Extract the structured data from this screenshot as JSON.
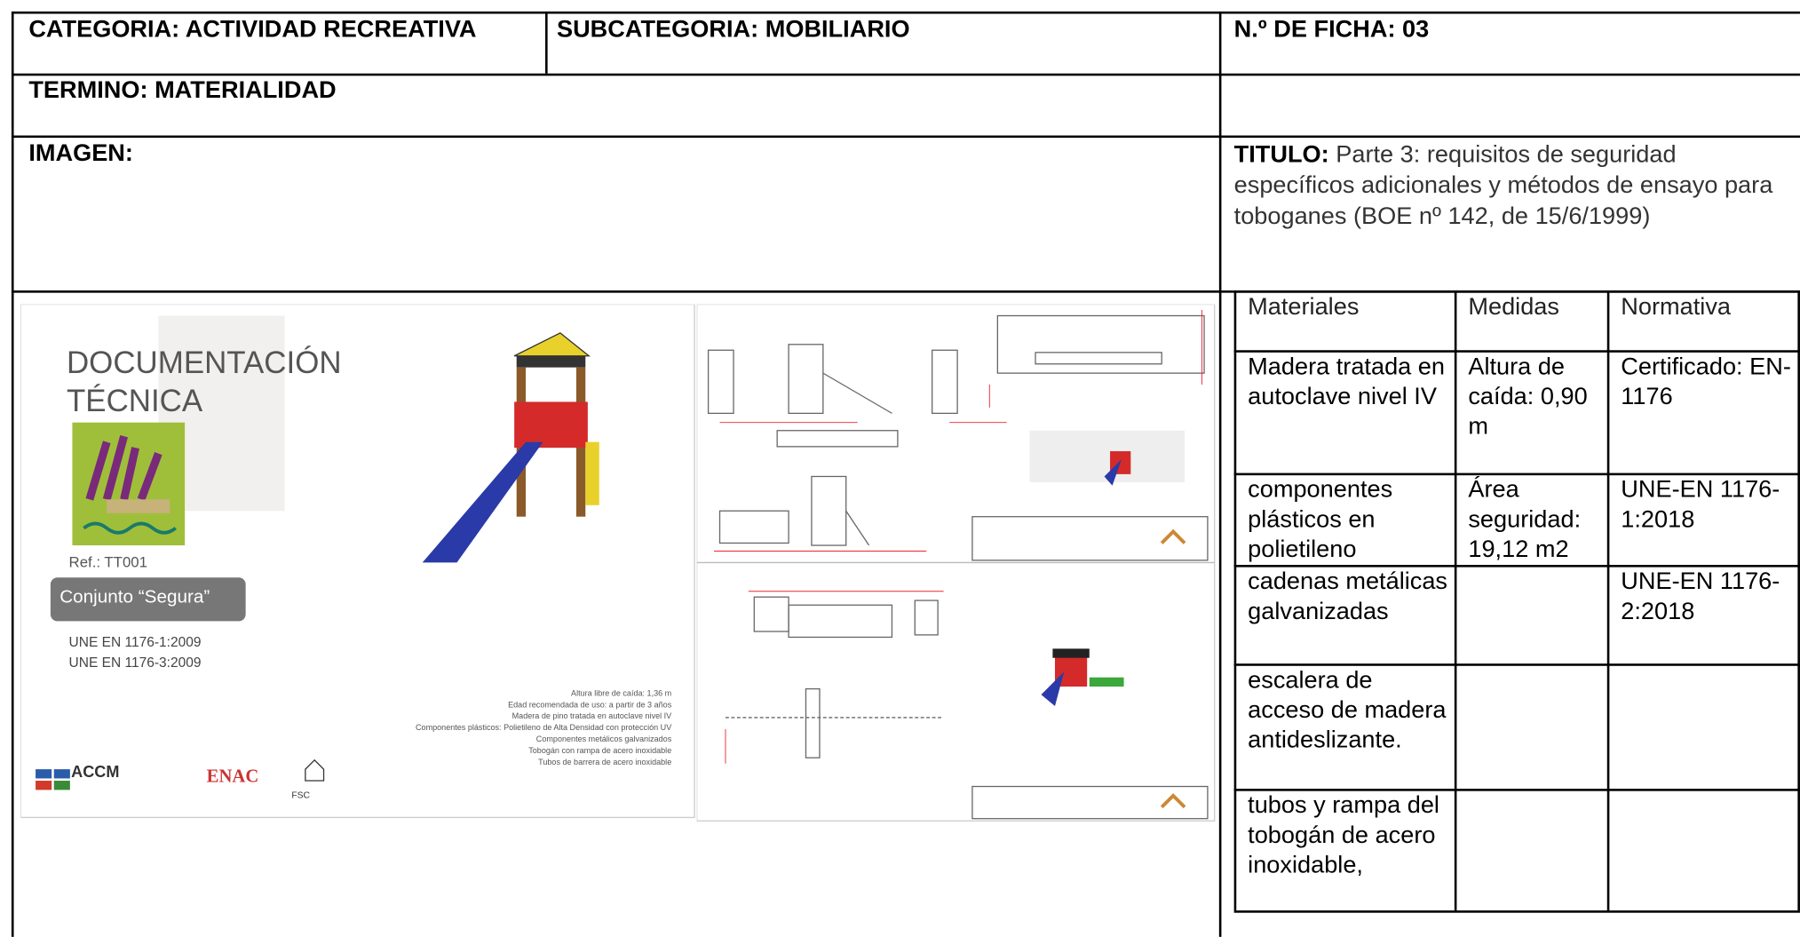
{
  "header": {
    "categoria": "CATEGORIA:  ACTIVIDAD RECREATIVA",
    "subcategoria": "SUBCATEGORIA:  MOBILIARIO",
    "ficha": "N.º DE FICHA: 03",
    "termino": "TERMINO: MATERIALIDAD",
    "imagen": "IMAGEN:",
    "titulo_label": "TITULO:",
    "titulo": "Parte 3: requisitos de seguridad específicos adicionales y métodos de ensayo para toboganes (BOE nº 142, de 15/6/1999)"
  },
  "image": {
    "heading": "DOCUMENTACIÓN TÉCNICA",
    "ref": "Ref.: TT001",
    "name": "Conjunto “Segura”",
    "standards": [
      "UNE EN 1176-1:2009",
      "UNE EN 1176-3:2009"
    ],
    "specs": [
      "Altura libre de caída: 1,36 m",
      "Edad recomendada de uso: a partir de 3 años",
      "Madera de pino tratada en autoclave nivel IV",
      "Componentes plásticos: Polietileno de Alta Densidad con protección UV",
      "Componentes metálicos galvanizados",
      "Tobogán con rampa de acero inoxidable",
      "Tubos de barrera de acero inoxidable"
    ],
    "logos": [
      "ACCM",
      "ENAC",
      "FSC"
    ]
  },
  "table": {
    "header": [
      "Materiales",
      "Medidas",
      "Normativa"
    ],
    "rows": [
      [
        "Madera tratada en autoclave nivel IV",
        "Altura de caída: 0,90 m",
        "Certificado: EN-1176"
      ],
      [
        "componentes plásticos en polietileno",
        "Área seguridad: 19,12 m2",
        "UNE-EN 1176-1:2018"
      ],
      [
        "cadenas metálicas galvanizadas",
        null,
        "UNE-EN 1176-2:2018"
      ],
      [
        "escalera de acceso de madera antideslizante.",
        null,
        null
      ],
      [
        "tubos y rampa del tobogán de acero inoxidable,",
        null,
        null
      ]
    ]
  }
}
